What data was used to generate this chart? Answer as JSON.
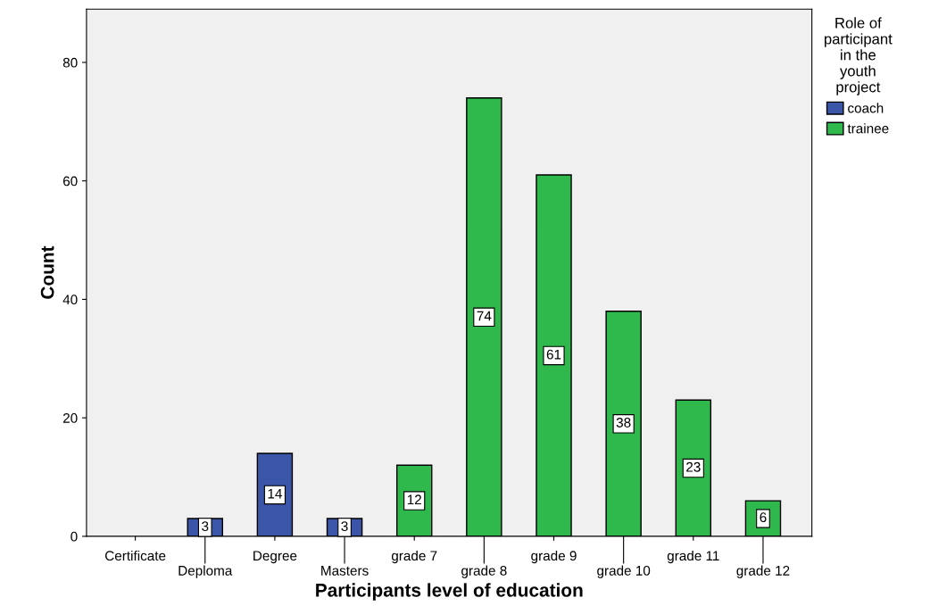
{
  "chart_data": {
    "type": "bar",
    "xlabel": "Participants level of education",
    "ylabel": "Count",
    "categories": [
      "Certificate",
      "Deploma",
      "Degree",
      "Masters",
      "grade 7",
      "grade 8",
      "grade 9",
      "grade 10",
      "grade 11",
      "grade 12"
    ],
    "series": [
      {
        "name": "coach",
        "color": "#3b55a8",
        "values": [
          null,
          3,
          14,
          3,
          null,
          null,
          null,
          null,
          null,
          null
        ]
      },
      {
        "name": "trainee",
        "color": "#2fb84b",
        "values": [
          null,
          null,
          null,
          null,
          12,
          74,
          61,
          38,
          23,
          6
        ]
      }
    ],
    "ylim": [
      0,
      89
    ],
    "yticks": [
      0,
      20,
      40,
      60,
      80
    ],
    "data_labels": true,
    "legend": "right",
    "legend_title": "Role of\nparticipant\nin the\nyouth\nproject",
    "grid": false
  }
}
